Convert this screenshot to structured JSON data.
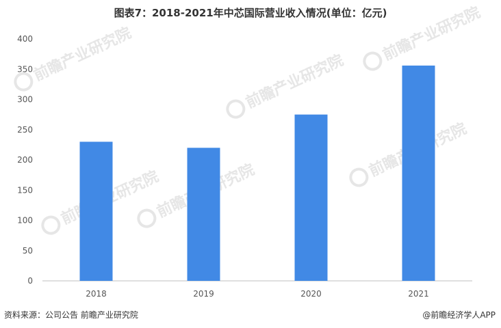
{
  "title": "图表7：2018-2021年中芯国际营业收入情况(单位：亿元)",
  "source": "资料来源：公司公告 前瞻产业研究院",
  "credit": "@前瞻经济学人APP",
  "watermark": {
    "text": "前瞻产业研究院",
    "color": "#e6e6e6"
  },
  "colors": {
    "bar": "#4189e5",
    "axis": "#bfbfbf",
    "text": "#555555"
  },
  "chart_data": {
    "type": "bar",
    "categories": [
      "2018",
      "2019",
      "2020",
      "2021"
    ],
    "values": [
      230,
      220,
      275,
      356
    ],
    "title": "图表7：2018-2021年中芯国际营业收入情况(单位：亿元)",
    "xlabel": "",
    "ylabel": "",
    "ylim": [
      0,
      400
    ],
    "yticks": [
      0,
      50,
      100,
      150,
      200,
      250,
      300,
      350,
      400
    ],
    "grid": false,
    "legend": "none"
  }
}
